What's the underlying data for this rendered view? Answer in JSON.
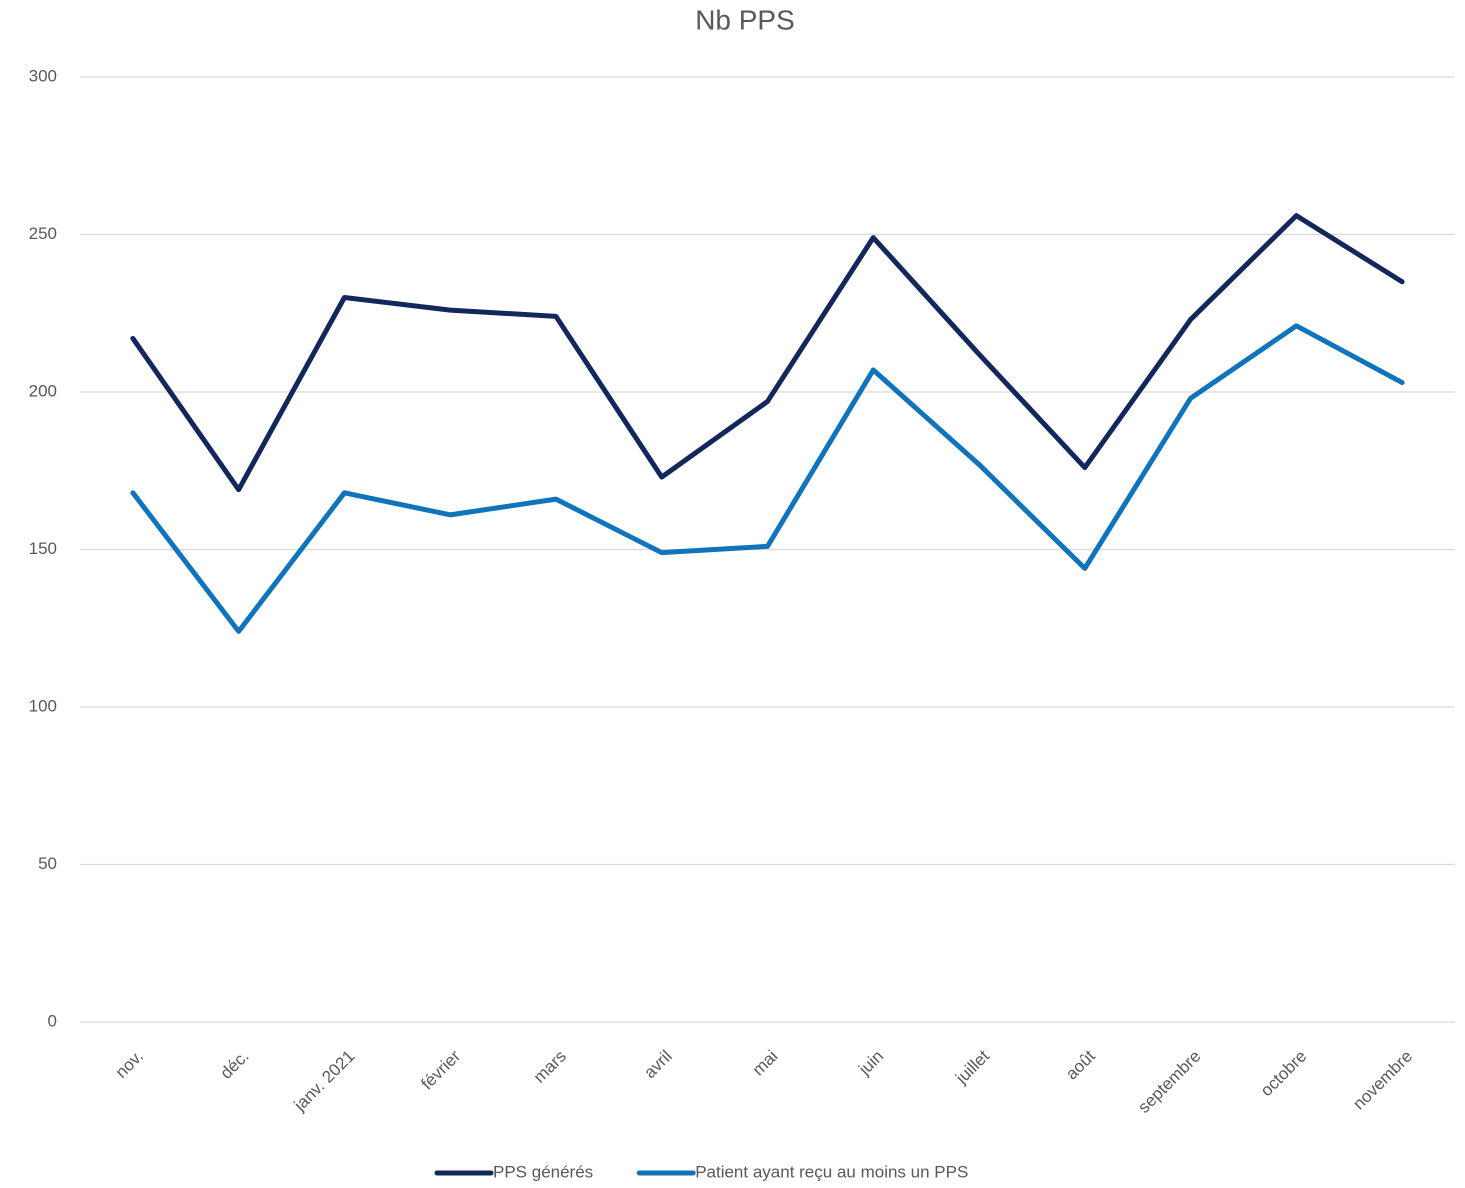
{
  "chart_data": {
    "type": "line",
    "title": "Nb PPS",
    "categories": [
      "nov.",
      "déc.",
      "janv. 2021",
      "février",
      "mars",
      "avril",
      "mai",
      "juin",
      "juillet",
      "août",
      "septembre",
      "octobre",
      "novembre"
    ],
    "series": [
      {
        "name": "PPS générés",
        "color": "#12275b",
        "values": [
          217,
          169,
          230,
          226,
          224,
          173,
          197,
          249,
          212,
          176,
          223,
          256,
          235
        ]
      },
      {
        "name": "Patient ayant reçu au moins un PPS",
        "color": "#0f74bb",
        "values": [
          168,
          124,
          168,
          161,
          166,
          149,
          151,
          207,
          177,
          144,
          198,
          221,
          203
        ]
      }
    ],
    "ylim": [
      0,
      300
    ],
    "yticks": [
      0,
      50,
      100,
      150,
      200,
      250,
      300
    ],
    "grid": true,
    "legend": "bottom"
  }
}
